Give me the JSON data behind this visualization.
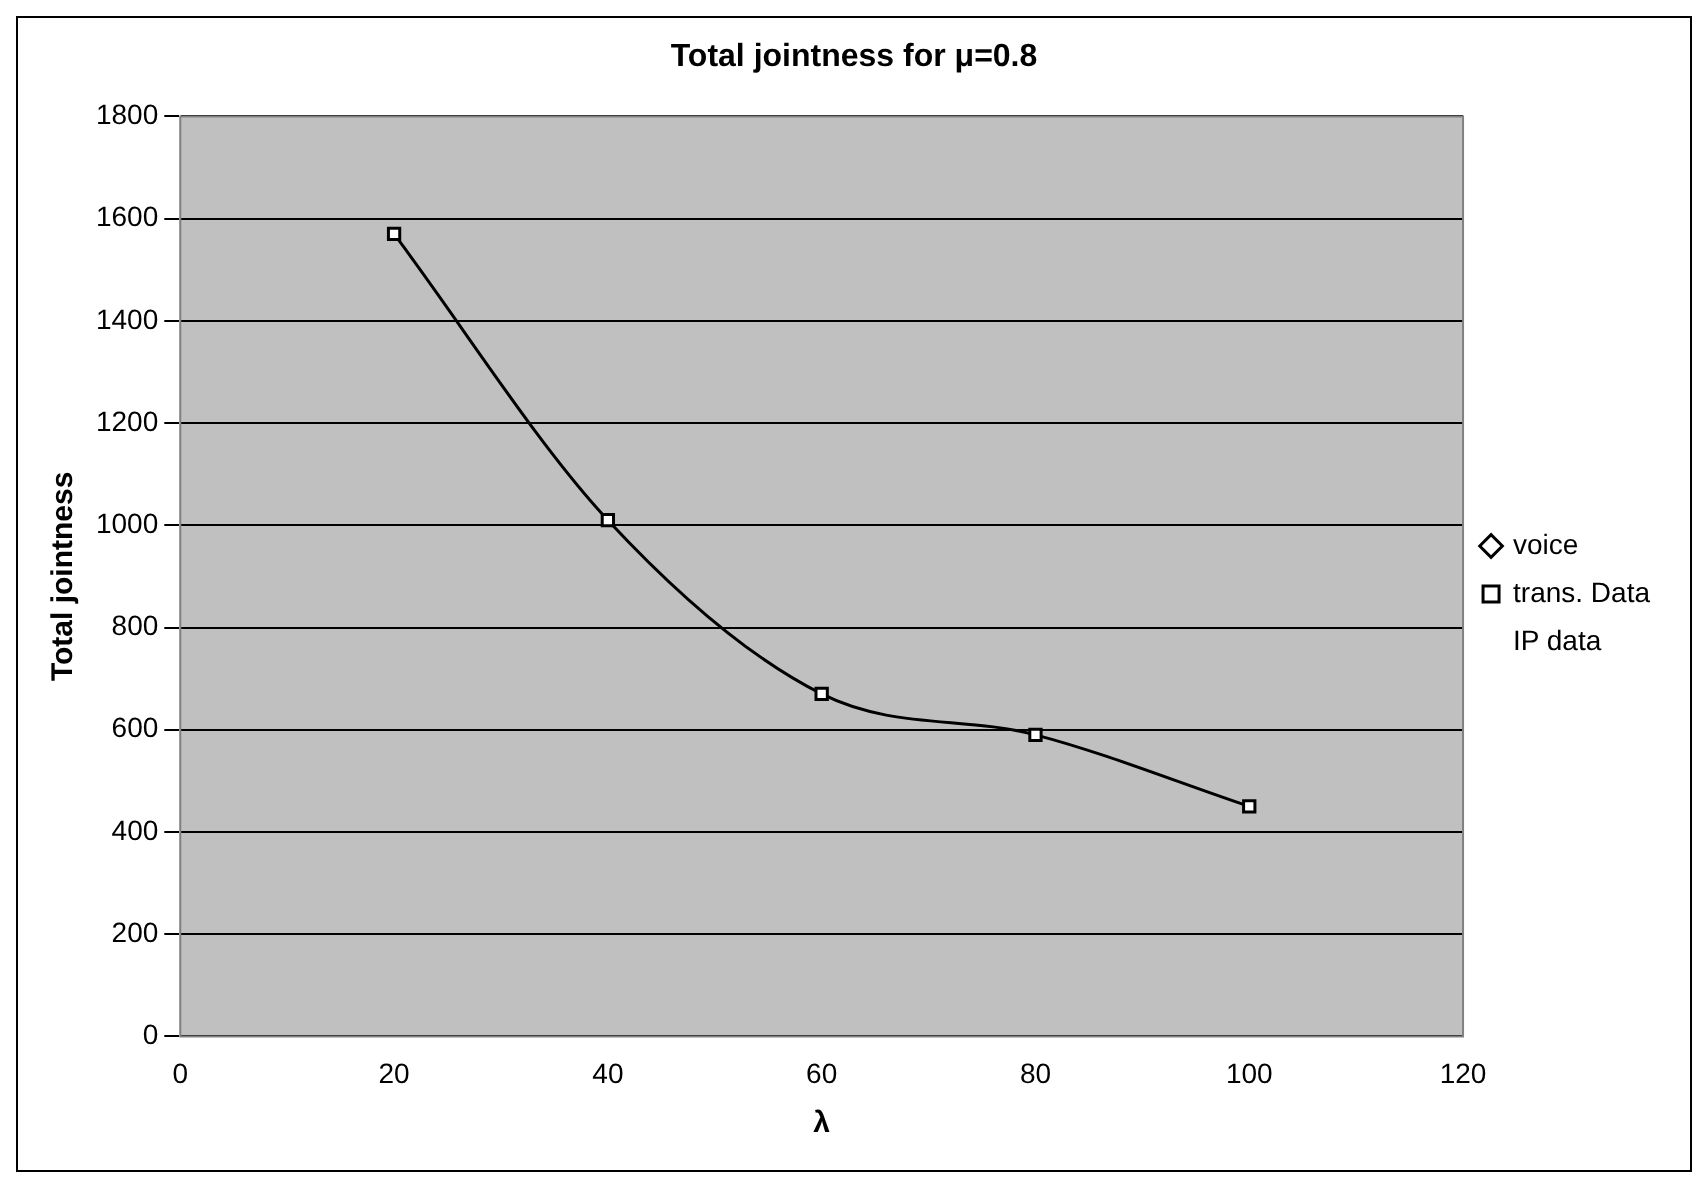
{
  "chart_data": {
    "type": "line",
    "title": "Total jointness for μ=0.8",
    "xlabel": "λ",
    "ylabel": "Total jointness",
    "x": [
      20,
      40,
      60,
      80,
      100
    ],
    "series": [
      {
        "name": "voice",
        "color": "#000000",
        "marker": "diamond",
        "values": [
          null,
          null,
          null,
          null,
          null
        ]
      },
      {
        "name": "trans. Data",
        "color": "#000000",
        "marker": "square",
        "values": [
          1570,
          1010,
          670,
          590,
          450
        ]
      },
      {
        "name": "IP data",
        "marker": "none",
        "values": [
          null,
          null,
          null,
          null,
          null
        ]
      }
    ],
    "xlim": [
      0,
      120
    ],
    "xticks": [
      0,
      20,
      40,
      60,
      80,
      100,
      120
    ],
    "ylim": [
      0,
      1800
    ],
    "yticks": [
      0,
      200,
      400,
      600,
      800,
      1000,
      1200,
      1400,
      1600,
      1800
    ],
    "grid": "y",
    "legend": "right"
  }
}
